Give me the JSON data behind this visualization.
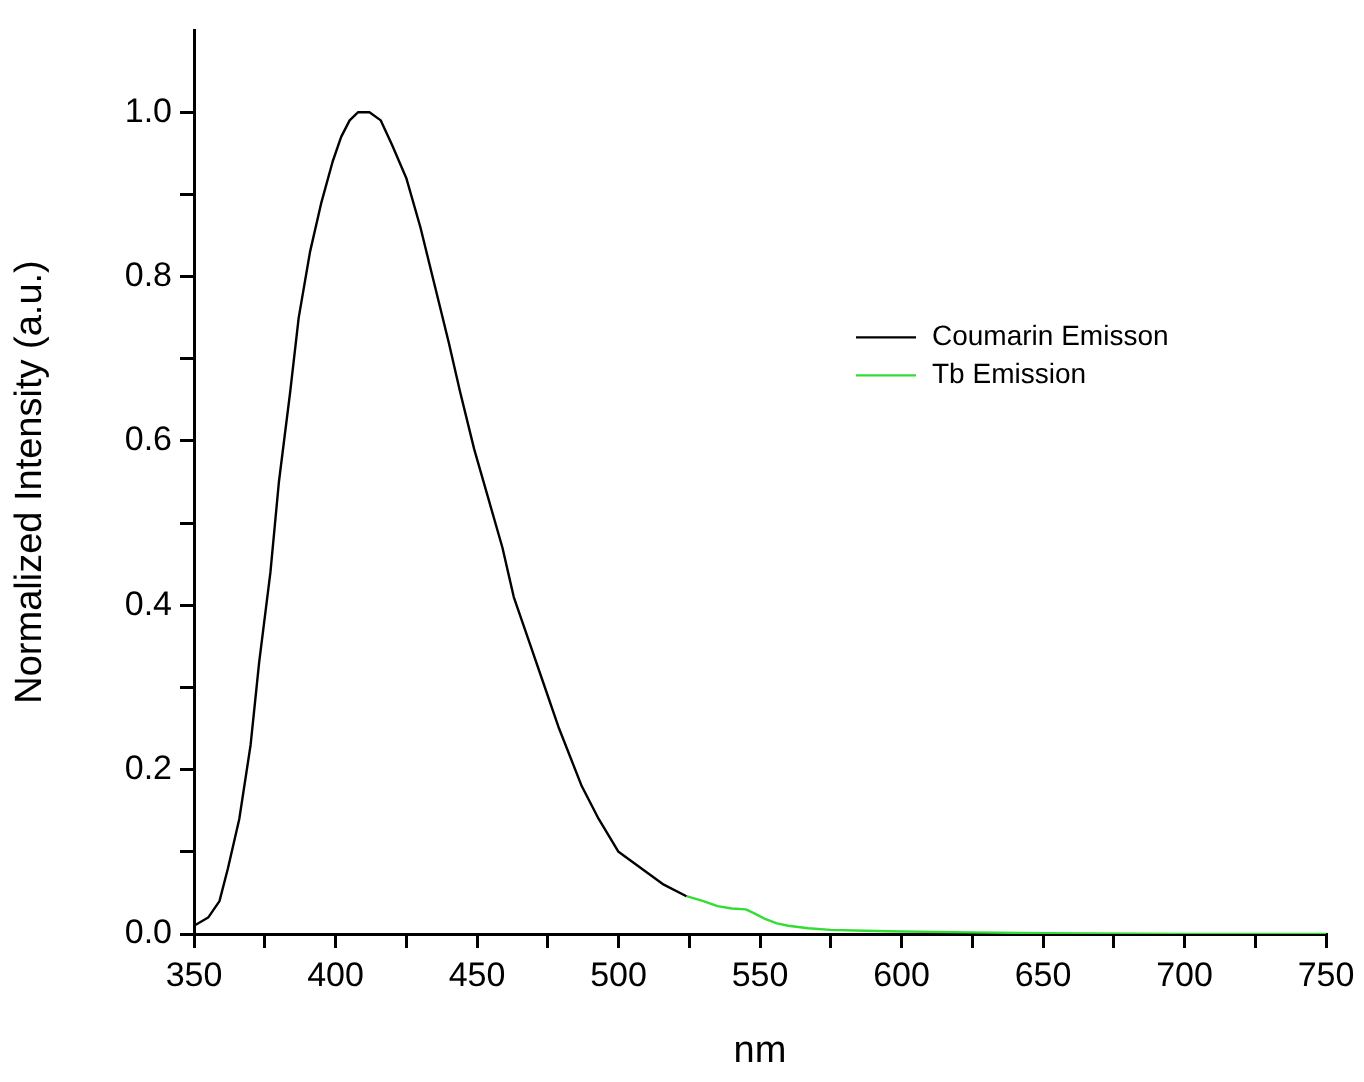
{
  "chart_data": {
    "type": "line",
    "xlabel": "nm",
    "ylabel": "Normalized Intensity (a.u.)",
    "xlim": [
      350,
      750
    ],
    "ylim": [
      0,
      1.1
    ],
    "xticks": [
      350,
      {
        "value": 375,
        "label": null
      },
      400,
      {
        "value": 425,
        "label": null
      },
      450,
      {
        "value": 475,
        "label": null
      },
      500,
      {
        "value": 525,
        "label": null
      },
      550,
      {
        "value": 575,
        "label": null
      },
      600,
      {
        "value": 625,
        "label": null
      },
      650,
      {
        "value": 675,
        "label": null
      },
      700,
      {
        "value": 725,
        "label": null
      },
      750
    ],
    "yticks": [
      {
        "value": 0,
        "label": "0.0"
      },
      {
        "value": 0.1,
        "label": null
      },
      0.2,
      {
        "value": 0.3,
        "label": null
      },
      0.4,
      {
        "value": 0.5,
        "label": null
      },
      0.6,
      {
        "value": 0.7,
        "label": null
      },
      0.8,
      {
        "value": 0.9,
        "label": null
      },
      {
        "value": 1,
        "label": "1.0"
      }
    ],
    "grid": false,
    "legend": "right",
    "marker": "none",
    "line_style": "solid",
    "series": [
      {
        "name": "Coumarin Emisson",
        "color": "#000000",
        "x": [
          350,
          355,
          359,
          362,
          366,
          370,
          373,
          377,
          380,
          384,
          387,
          391,
          395,
          399,
          402,
          405,
          408,
          412,
          416,
          420,
          425,
          430,
          435,
          440,
          444,
          449,
          454,
          459,
          463,
          468,
          473,
          479,
          487,
          493,
          500,
          508,
          516,
          524
        ],
        "values": [
          0.01,
          0.02,
          0.04,
          0.08,
          0.14,
          0.23,
          0.33,
          0.44,
          0.55,
          0.66,
          0.75,
          0.83,
          0.89,
          0.94,
          0.97,
          0.99,
          1.0,
          1.0,
          0.99,
          0.96,
          0.92,
          0.86,
          0.79,
          0.72,
          0.66,
          0.59,
          0.53,
          0.47,
          0.41,
          0.36,
          0.31,
          0.25,
          0.18,
          0.14,
          0.1,
          0.08,
          0.06,
          0.046
        ]
      },
      {
        "name": "Tb Emission",
        "color": "#33dd33",
        "x": [
          524,
          530,
          535,
          540,
          545,
          548,
          552,
          556,
          560,
          567,
          575,
          587,
          600,
          625,
          650,
          700,
          750
        ],
        "values": [
          0.046,
          0.04,
          0.034,
          0.031,
          0.03,
          0.025,
          0.018,
          0.013,
          0.01,
          0.007,
          0.005,
          0.004,
          0.003,
          0.002,
          0.001,
          0.0,
          0.0
        ]
      }
    ]
  }
}
